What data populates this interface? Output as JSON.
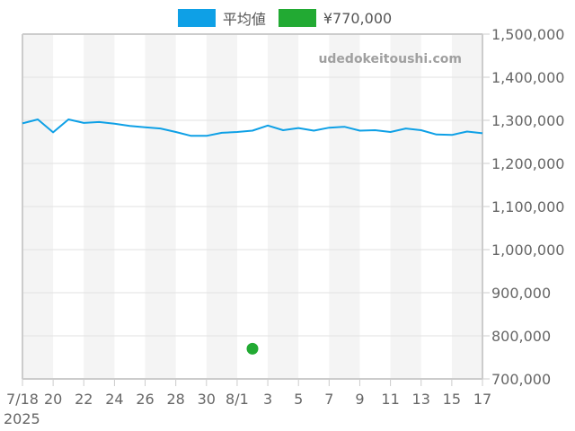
{
  "legend": [
    {
      "label": "平均値",
      "color": "#0ea0e6"
    },
    {
      "label": "¥770,000",
      "color": "#22aa33"
    }
  ],
  "watermark": "udedokeitoushi.com",
  "chart_data": {
    "type": "line",
    "title": "",
    "xlabel": "",
    "ylabel": "",
    "ylim": [
      700000,
      1500000
    ],
    "y_ticks": [
      "1,500,000",
      "1,400,000",
      "1,300,000",
      "1,200,000",
      "1,100,000",
      "1,000,000",
      "900,000",
      "800,000",
      "700,000"
    ],
    "x_tick_labels": [
      "7/18",
      "20",
      "22",
      "24",
      "26",
      "28",
      "30",
      "8/1",
      "3",
      "5",
      "7",
      "9",
      "11",
      "13",
      "15",
      "17"
    ],
    "x_year_label": "2025",
    "x": [
      "7/18",
      "7/19",
      "7/20",
      "7/21",
      "7/22",
      "7/23",
      "7/24",
      "7/25",
      "7/26",
      "7/27",
      "7/28",
      "7/29",
      "7/30",
      "7/31",
      "8/1",
      "8/2",
      "8/3",
      "8/4",
      "8/5",
      "8/6",
      "8/7",
      "8/8",
      "8/9",
      "8/10",
      "8/11",
      "8/12",
      "8/13",
      "8/14",
      "8/15",
      "8/16",
      "8/17"
    ],
    "series": [
      {
        "name": "平均値",
        "color": "#0ea0e6",
        "values": [
          1293000,
          1302000,
          1272000,
          1302000,
          1294000,
          1296000,
          1292000,
          1287000,
          1284000,
          1281000,
          1273000,
          1264000,
          1264000,
          1271000,
          1273000,
          1276000,
          1288000,
          1277000,
          1282000,
          1276000,
          1283000,
          1285000,
          1276000,
          1277000,
          1273000,
          1281000,
          1277000,
          1267000,
          1266000,
          1274000,
          1270000
        ]
      },
      {
        "name": "¥770,000",
        "color": "#22aa33",
        "type": "point",
        "points": [
          {
            "x": "8/2",
            "y": 770000
          }
        ]
      }
    ],
    "grid": true,
    "legend_position": "top"
  }
}
